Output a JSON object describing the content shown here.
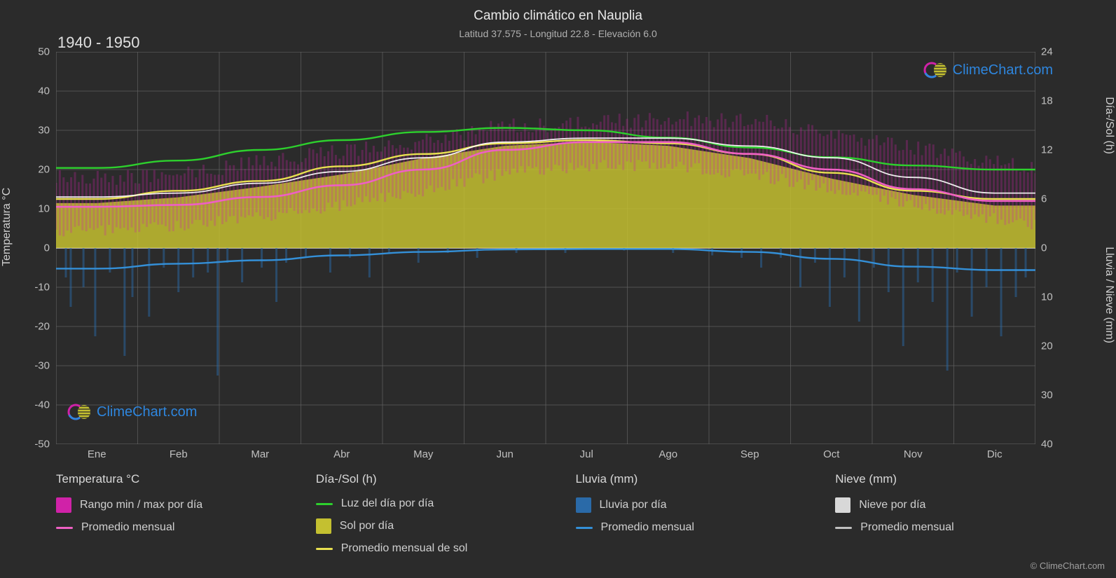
{
  "title": "Cambio climático en Nauplia",
  "subtitle": "Latitud 37.575 - Longitud 22.8 - Elevación 6.0",
  "period": "1940 - 1950",
  "axis_left_label": "Temperatura °C",
  "axis_right_top_label": "Día-/Sol (h)",
  "axis_right_bottom_label": "Lluvia / Nieve (mm)",
  "copyright": "© ClimeChart.com",
  "logo_text": "ClimeChart.com",
  "background_color": "#2b2b2b",
  "plot_background": "#2b2b2b",
  "grid_color": "#606060",
  "text_color": "#d0d0d0",
  "temp": {
    "ylim": [
      -50,
      50
    ],
    "ytick_step": 10,
    "monthly_avg": [
      10.5,
      11,
      13,
      16,
      20,
      25,
      27,
      27,
      24,
      20,
      15,
      12
    ],
    "monthly_max": [
      13,
      14,
      16.5,
      19.5,
      23,
      27,
      28,
      28,
      26,
      23,
      18,
      14
    ],
    "range_top": [
      18,
      18,
      21,
      24,
      27,
      31,
      32,
      33,
      32,
      28,
      24,
      20
    ],
    "range_bottom": [
      4,
      5,
      7,
      10,
      14,
      19,
      21,
      21,
      18,
      14,
      9,
      6
    ],
    "line_color": "#ee60c3",
    "range_color": "#d022a8"
  },
  "daylight": {
    "ylim": [
      0,
      24
    ],
    "ytick_step": 6,
    "daylight_monthly": [
      9.8,
      10.7,
      12,
      13.2,
      14.2,
      14.7,
      14.4,
      13.5,
      12.3,
      11.1,
      10.1,
      9.6
    ],
    "sun_area": [
      5.5,
      6.2,
      7.5,
      9,
      11,
      12.5,
      13,
      12.5,
      11,
      8.5,
      6.5,
      5.2
    ],
    "sun_monthly_avg": [
      6,
      7,
      8.2,
      10,
      11.5,
      12.8,
      13.2,
      12.8,
      11.5,
      9.2,
      7,
      6
    ],
    "daylight_color": "#2dd02d",
    "sun_color": "#c4c030",
    "sun_line_color": "#e8e050"
  },
  "rain": {
    "ylim": [
      0,
      40
    ],
    "ytick_step": 10,
    "monthly_avg": [
      4.2,
      3.2,
      2.5,
      1.5,
      0.8,
      0.3,
      0.2,
      0.2,
      0.8,
      2.2,
      3.8,
      4.5
    ],
    "daily_spikes": [
      [
        0.01,
        6
      ],
      [
        0.015,
        12
      ],
      [
        0.028,
        8
      ],
      [
        0.04,
        18
      ],
      [
        0.055,
        5
      ],
      [
        0.07,
        22
      ],
      [
        0.078,
        10
      ],
      [
        0.095,
        14
      ],
      [
        0.11,
        4
      ],
      [
        0.125,
        9
      ],
      [
        0.14,
        6
      ],
      [
        0.155,
        5
      ],
      [
        0.165,
        26
      ],
      [
        0.175,
        3
      ],
      [
        0.19,
        7
      ],
      [
        0.21,
        4
      ],
      [
        0.225,
        11
      ],
      [
        0.235,
        3
      ],
      [
        0.255,
        2
      ],
      [
        0.28,
        5
      ],
      [
        0.3,
        2
      ],
      [
        0.32,
        6
      ],
      [
        0.34,
        1
      ],
      [
        0.37,
        3
      ],
      [
        0.4,
        1
      ],
      [
        0.43,
        2
      ],
      [
        0.47,
        1
      ],
      [
        0.52,
        1
      ],
      [
        0.58,
        0.5
      ],
      [
        0.63,
        1
      ],
      [
        0.67,
        1.5
      ],
      [
        0.7,
        2
      ],
      [
        0.72,
        4
      ],
      [
        0.74,
        2
      ],
      [
        0.76,
        8
      ],
      [
        0.775,
        3
      ],
      [
        0.79,
        12
      ],
      [
        0.805,
        6
      ],
      [
        0.82,
        15
      ],
      [
        0.835,
        4
      ],
      [
        0.85,
        9
      ],
      [
        0.865,
        20
      ],
      [
        0.88,
        7
      ],
      [
        0.895,
        11
      ],
      [
        0.91,
        25
      ],
      [
        0.92,
        5
      ],
      [
        0.935,
        14
      ],
      [
        0.95,
        8
      ],
      [
        0.965,
        18
      ],
      [
        0.98,
        10
      ],
      [
        0.99,
        6
      ]
    ],
    "line_color": "#3490d8",
    "spike_color": "#2a6aa8"
  },
  "snow": {
    "line_color": "#c0c0c0",
    "spike_color": "#d8d8d8"
  },
  "months": [
    "Ene",
    "Feb",
    "Mar",
    "Abr",
    "May",
    "Jun",
    "Jul",
    "Ago",
    "Sep",
    "Oct",
    "Nov",
    "Dic"
  ],
  "ticks_left": [
    50,
    40,
    30,
    20,
    10,
    0,
    -10,
    -20,
    -30,
    -40,
    -50
  ],
  "ticks_right_top": [
    24,
    18,
    12,
    6,
    0
  ],
  "ticks_right_bottom": [
    0,
    10,
    20,
    30,
    40
  ],
  "legend": {
    "col1_title": "Temperatura °C",
    "col1_item1": "Rango min / max por día",
    "col1_item2": "Promedio mensual",
    "col2_title": "Día-/Sol (h)",
    "col2_item1": "Luz del día por día",
    "col2_item2": "Sol por día",
    "col2_item3": "Promedio mensual de sol",
    "col3_title": "Lluvia (mm)",
    "col3_item1": "Lluvia por día",
    "col3_item2": "Promedio mensual",
    "col4_title": "Nieve (mm)",
    "col4_item1": "Nieve por día",
    "col4_item2": "Promedio mensual"
  }
}
